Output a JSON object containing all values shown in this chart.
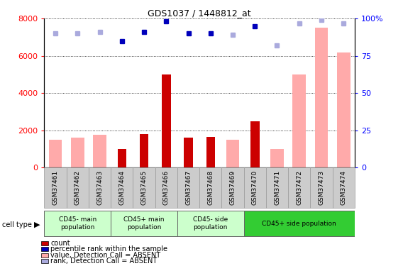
{
  "title": "GDS1037 / 1448812_at",
  "samples": [
    "GSM37461",
    "GSM37462",
    "GSM37463",
    "GSM37464",
    "GSM37465",
    "GSM37466",
    "GSM37467",
    "GSM37468",
    "GSM37469",
    "GSM37470",
    "GSM37471",
    "GSM37472",
    "GSM37473",
    "GSM37474"
  ],
  "count_values": [
    null,
    null,
    null,
    1000,
    1800,
    5000,
    1600,
    1650,
    null,
    2500,
    null,
    null,
    null,
    null
  ],
  "value_absent": [
    1500,
    1600,
    1750,
    null,
    null,
    null,
    null,
    null,
    1500,
    null,
    1000,
    5000,
    7500,
    6200
  ],
  "percentile_dark": [
    null,
    null,
    null,
    85,
    91,
    98,
    90,
    90,
    null,
    95,
    null,
    null,
    null,
    null
  ],
  "rank_absent": [
    90,
    90,
    91,
    null,
    null,
    null,
    null,
    null,
    89,
    null,
    82,
    97,
    99,
    97
  ],
  "cell_type_groups": [
    {
      "label": "CD45- main\npopulation",
      "start": 0,
      "end": 2,
      "color": "#ccffcc"
    },
    {
      "label": "CD45+ main\npopulation",
      "start": 3,
      "end": 5,
      "color": "#ccffcc"
    },
    {
      "label": "CD45- side\npopulation",
      "start": 6,
      "end": 8,
      "color": "#ccffcc"
    },
    {
      "label": "CD45+ side population",
      "start": 9,
      "end": 13,
      "color": "#33cc33"
    }
  ],
  "ylim_left": [
    0,
    8000
  ],
  "ylim_right": [
    0,
    100
  ],
  "yticks_left": [
    0,
    2000,
    4000,
    6000,
    8000
  ],
  "yticks_right": [
    0,
    25,
    50,
    75,
    100
  ],
  "count_color": "#cc0000",
  "absent_value_color": "#ffaaaa",
  "percentile_dark_color": "#0000bb",
  "rank_absent_color": "#aaaadd",
  "legend_items": [
    {
      "label": "count",
      "color": "#cc0000"
    },
    {
      "label": "percentile rank within the sample",
      "color": "#0000bb"
    },
    {
      "label": "value, Detection Call = ABSENT",
      "color": "#ffaaaa"
    },
    {
      "label": "rank, Detection Call = ABSENT",
      "color": "#aaaadd"
    }
  ],
  "grid_color": "black",
  "plot_bg": "#ffffff",
  "xticklabel_bg": "#cccccc"
}
